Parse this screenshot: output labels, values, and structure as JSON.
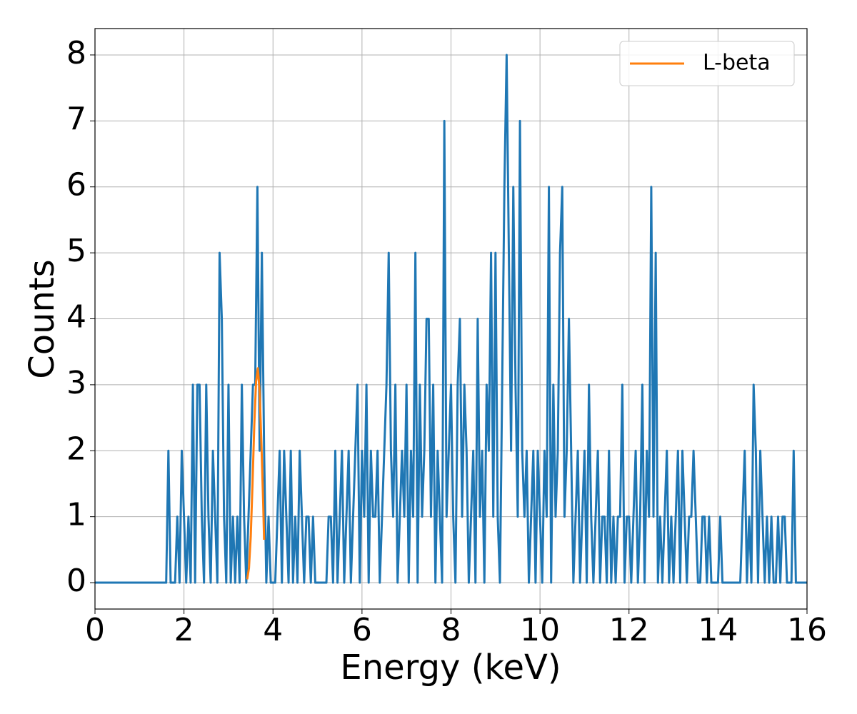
{
  "chart_data": {
    "type": "line",
    "xlabel": "Energy (keV)",
    "ylabel": "Counts",
    "xlim": [
      0,
      16
    ],
    "ylim": [
      -0.4,
      8.4
    ],
    "xticks": [
      0,
      2,
      4,
      6,
      8,
      10,
      12,
      14,
      16
    ],
    "yticks": [
      0,
      1,
      2,
      3,
      4,
      5,
      6,
      7,
      8
    ],
    "grid": true,
    "legend": "upper right",
    "series": [
      {
        "color": "#1f77b4",
        "x": [
          0,
          1.6,
          1.65,
          1.7,
          1.75,
          1.8,
          1.85,
          1.9,
          1.95,
          2.0,
          2.05,
          2.1,
          2.15,
          2.2,
          2.25,
          2.3,
          2.35,
          2.4,
          2.45,
          2.5,
          2.55,
          2.6,
          2.65,
          2.7,
          2.75,
          2.8,
          2.85,
          2.9,
          2.95,
          3.0,
          3.05,
          3.1,
          3.15,
          3.2,
          3.25,
          3.3,
          3.35,
          3.4,
          3.45,
          3.5,
          3.55,
          3.6,
          3.65,
          3.7,
          3.75,
          3.8,
          3.85,
          3.9,
          3.95,
          4.0,
          4.05,
          4.1,
          4.15,
          4.2,
          4.25,
          4.3,
          4.35,
          4.4,
          4.45,
          4.5,
          4.55,
          4.6,
          4.65,
          4.7,
          4.75,
          4.8,
          4.85,
          4.9,
          4.95,
          5.0,
          5.05,
          5.1,
          5.15,
          5.2,
          5.25,
          5.3,
          5.35,
          5.4,
          5.45,
          5.5,
          5.55,
          5.6,
          5.65,
          5.7,
          5.75,
          5.8,
          5.85,
          5.9,
          5.95,
          6.0,
          6.05,
          6.1,
          6.15,
          6.2,
          6.25,
          6.3,
          6.35,
          6.4,
          6.45,
          6.5,
          6.55,
          6.6,
          6.65,
          6.7,
          6.75,
          6.8,
          6.85,
          6.9,
          6.95,
          7.0,
          7.05,
          7.1,
          7.15,
          7.2,
          7.25,
          7.3,
          7.35,
          7.4,
          7.45,
          7.5,
          7.55,
          7.6,
          7.65,
          7.7,
          7.75,
          7.8,
          7.85,
          7.9,
          7.95,
          8.0,
          8.05,
          8.1,
          8.15,
          8.2,
          8.25,
          8.3,
          8.35,
          8.4,
          8.45,
          8.5,
          8.55,
          8.6,
          8.65,
          8.7,
          8.75,
          8.8,
          8.85,
          8.9,
          8.95,
          9.0,
          9.05,
          9.1,
          9.15,
          9.2,
          9.25,
          9.3,
          9.35,
          9.4,
          9.45,
          9.5,
          9.55,
          9.6,
          9.65,
          9.7,
          9.75,
          9.8,
          9.85,
          9.9,
          9.95,
          10.0,
          10.05,
          10.1,
          10.15,
          10.2,
          10.25,
          10.3,
          10.35,
          10.4,
          10.45,
          10.5,
          10.55,
          10.6,
          10.65,
          10.7,
          10.75,
          10.8,
          10.85,
          10.9,
          10.95,
          11.0,
          11.05,
          11.1,
          11.15,
          11.2,
          11.25,
          11.3,
          11.35,
          11.4,
          11.45,
          11.5,
          11.55,
          11.6,
          11.65,
          11.7,
          11.75,
          11.8,
          11.85,
          11.9,
          11.95,
          12.0,
          12.05,
          12.1,
          12.15,
          12.2,
          12.25,
          12.3,
          12.35,
          12.4,
          12.45,
          12.5,
          12.55,
          12.6,
          12.65,
          12.7,
          12.75,
          12.8,
          12.85,
          12.9,
          12.95,
          13.0,
          13.05,
          13.1,
          13.15,
          13.2,
          13.25,
          13.3,
          13.35,
          13.4,
          13.45,
          13.5,
          13.55,
          13.6,
          13.65,
          13.7,
          13.75,
          13.8,
          13.85,
          13.9,
          13.95,
          14.0,
          14.05,
          14.1,
          14.15,
          14.2,
          14.25,
          14.3,
          14.35,
          14.4,
          14.45,
          14.5,
          14.55,
          14.6,
          14.65,
          14.7,
          14.75,
          14.8,
          14.85,
          14.9,
          14.95,
          15.0,
          15.05,
          15.1,
          15.15,
          15.2,
          15.25,
          15.3,
          15.35,
          15.4,
          15.45,
          15.5,
          15.55,
          15.6,
          15.65,
          15.7,
          15.75,
          15.8,
          16
        ],
        "values": [
          0,
          0,
          2,
          0,
          0,
          0,
          1,
          0,
          2,
          1,
          0,
          1,
          0,
          3,
          0,
          3,
          3,
          1,
          0,
          3,
          1,
          0,
          2,
          1,
          0,
          5,
          4,
          1,
          0,
          3,
          0,
          1,
          0,
          1,
          0,
          3,
          1,
          0,
          1,
          2,
          3,
          3,
          6,
          2,
          5,
          2,
          0,
          1,
          0,
          0,
          0,
          1,
          2,
          0,
          2,
          1,
          0,
          2,
          0,
          1,
          0,
          2,
          1,
          0,
          1,
          1,
          0,
          1,
          0,
          0,
          0,
          0,
          0,
          0,
          1,
          1,
          0,
          2,
          0,
          1,
          2,
          0,
          1,
          2,
          0,
          1,
          2,
          3,
          0,
          2,
          1,
          3,
          0,
          2,
          1,
          1,
          2,
          0,
          1,
          2,
          3,
          5,
          2,
          1,
          3,
          0,
          1,
          2,
          1,
          3,
          0,
          2,
          1,
          5,
          0,
          3,
          1,
          2,
          4,
          4,
          1,
          3,
          0,
          2,
          1,
          0,
          7,
          1,
          2,
          3,
          1,
          0,
          3,
          4,
          1,
          3,
          2,
          0,
          1,
          2,
          0,
          4,
          1,
          2,
          0,
          3,
          2,
          5,
          1,
          5,
          1,
          0,
          3,
          6,
          8,
          5,
          2,
          6,
          3,
          1,
          7,
          2,
          1,
          2,
          0,
          1,
          2,
          0,
          2,
          1,
          0,
          2,
          1,
          6,
          0,
          3,
          1,
          2,
          5,
          6,
          1,
          2,
          4,
          2,
          0,
          1,
          2,
          0,
          1,
          2,
          0,
          3,
          1,
          0,
          1,
          2,
          0,
          1,
          1,
          0,
          2,
          0,
          1,
          0,
          1,
          1,
          3,
          0,
          1,
          1,
          0,
          1,
          2,
          0,
          1,
          3,
          0,
          2,
          1,
          6,
          1,
          5,
          0,
          1,
          0,
          1,
          2,
          0,
          1,
          0,
          1,
          2,
          0,
          2,
          1,
          0,
          1,
          1,
          2,
          1,
          0,
          0,
          1,
          1,
          0,
          1,
          0,
          0,
          0,
          0,
          1,
          0,
          0,
          0,
          0,
          0,
          0,
          0,
          0,
          0,
          1,
          2,
          0,
          1,
          0,
          3,
          2,
          0,
          2,
          1,
          0,
          1,
          0,
          1,
          0,
          0,
          1,
          0,
          1,
          1,
          0,
          0,
          0,
          2,
          0,
          0,
          0
        ]
      },
      {
        "name": "L-beta",
        "color": "#ff7f0e",
        "x": [
          3.42,
          3.46,
          3.5,
          3.54,
          3.58,
          3.62,
          3.66,
          3.7,
          3.74,
          3.78,
          3.8
        ],
        "values": [
          0.05,
          0.22,
          0.7,
          1.5,
          2.4,
          3.05,
          3.25,
          2.9,
          2.1,
          1.2,
          0.65
        ]
      }
    ]
  }
}
